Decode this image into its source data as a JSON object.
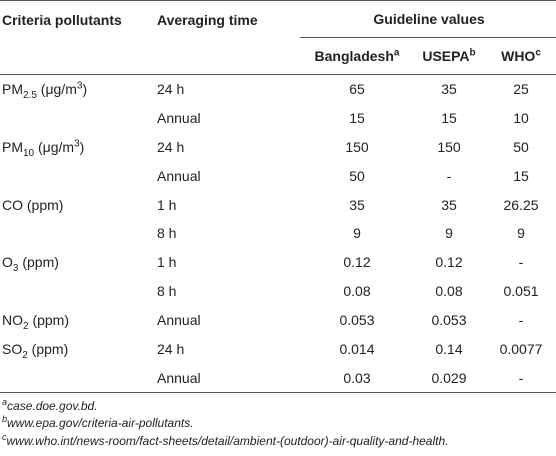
{
  "table": {
    "columns": [
      "Criteria pollutants",
      "Averaging time"
    ],
    "group": "Guideline values",
    "subcolumns": [
      {
        "text": "Bangladesh",
        "sup": "a"
      },
      {
        "text": "USEPA",
        "sup": "b"
      },
      {
        "text": "WHO",
        "sup": "c"
      }
    ],
    "groups": [
      {
        "label": [
          {
            "text": "PM"
          },
          {
            "sub": "2.5"
          },
          {
            "text": " (μg/m"
          },
          {
            "sup": "3"
          },
          {
            "text": ")"
          }
        ],
        "rows": [
          {
            "time": "24 h",
            "values": [
              65,
              35,
              25
            ]
          },
          {
            "time": "Annual",
            "values": [
              15,
              15,
              10
            ]
          }
        ]
      },
      {
        "label": [
          {
            "text": "PM"
          },
          {
            "sub": "10"
          },
          {
            "text": " (μg/m"
          },
          {
            "sup": "3"
          },
          {
            "text": ")"
          }
        ],
        "rows": [
          {
            "time": "24 h",
            "values": [
              150,
              150,
              50
            ]
          },
          {
            "time": "Annual",
            "values": [
              50,
              "-",
              15
            ]
          }
        ]
      },
      {
        "label": [
          {
            "text": "CO (ppm)"
          }
        ],
        "rows": [
          {
            "time": "1 h",
            "values": [
              35,
              35,
              26.25
            ]
          },
          {
            "time": "8 h",
            "values": [
              9,
              9,
              9
            ]
          }
        ]
      },
      {
        "label": [
          {
            "text": "O"
          },
          {
            "sub": "3"
          },
          {
            "text": " (ppm)"
          }
        ],
        "rows": [
          {
            "time": "1 h",
            "values": [
              0.12,
              0.12,
              "-"
            ]
          },
          {
            "time": "8 h",
            "values": [
              0.08,
              0.08,
              0.051
            ]
          }
        ]
      },
      {
        "label": [
          {
            "text": "NO"
          },
          {
            "sub": "2"
          },
          {
            "text": " (ppm)"
          }
        ],
        "rows": [
          {
            "time": "Annual",
            "values": [
              0.053,
              0.053,
              "-"
            ]
          }
        ]
      },
      {
        "label": [
          {
            "text": "SO"
          },
          {
            "sub": "2"
          },
          {
            "text": " (ppm)"
          }
        ],
        "rows": [
          {
            "time": "24 h",
            "values": [
              0.014,
              0.14,
              0.0077
            ]
          },
          {
            "time": "Annual",
            "values": [
              0.03,
              0.029,
              "-"
            ]
          }
        ]
      }
    ],
    "footnotes": [
      {
        "mark": "a",
        "text": "case.doe.gov.bd."
      },
      {
        "mark": "b",
        "text": "www.epa.gov/criteria-air-pollutants."
      },
      {
        "mark": "c",
        "text": "www.who.int/news-room/fact-sheets/detail/ambient-(outdoor)-air-quality-and-health."
      }
    ]
  }
}
